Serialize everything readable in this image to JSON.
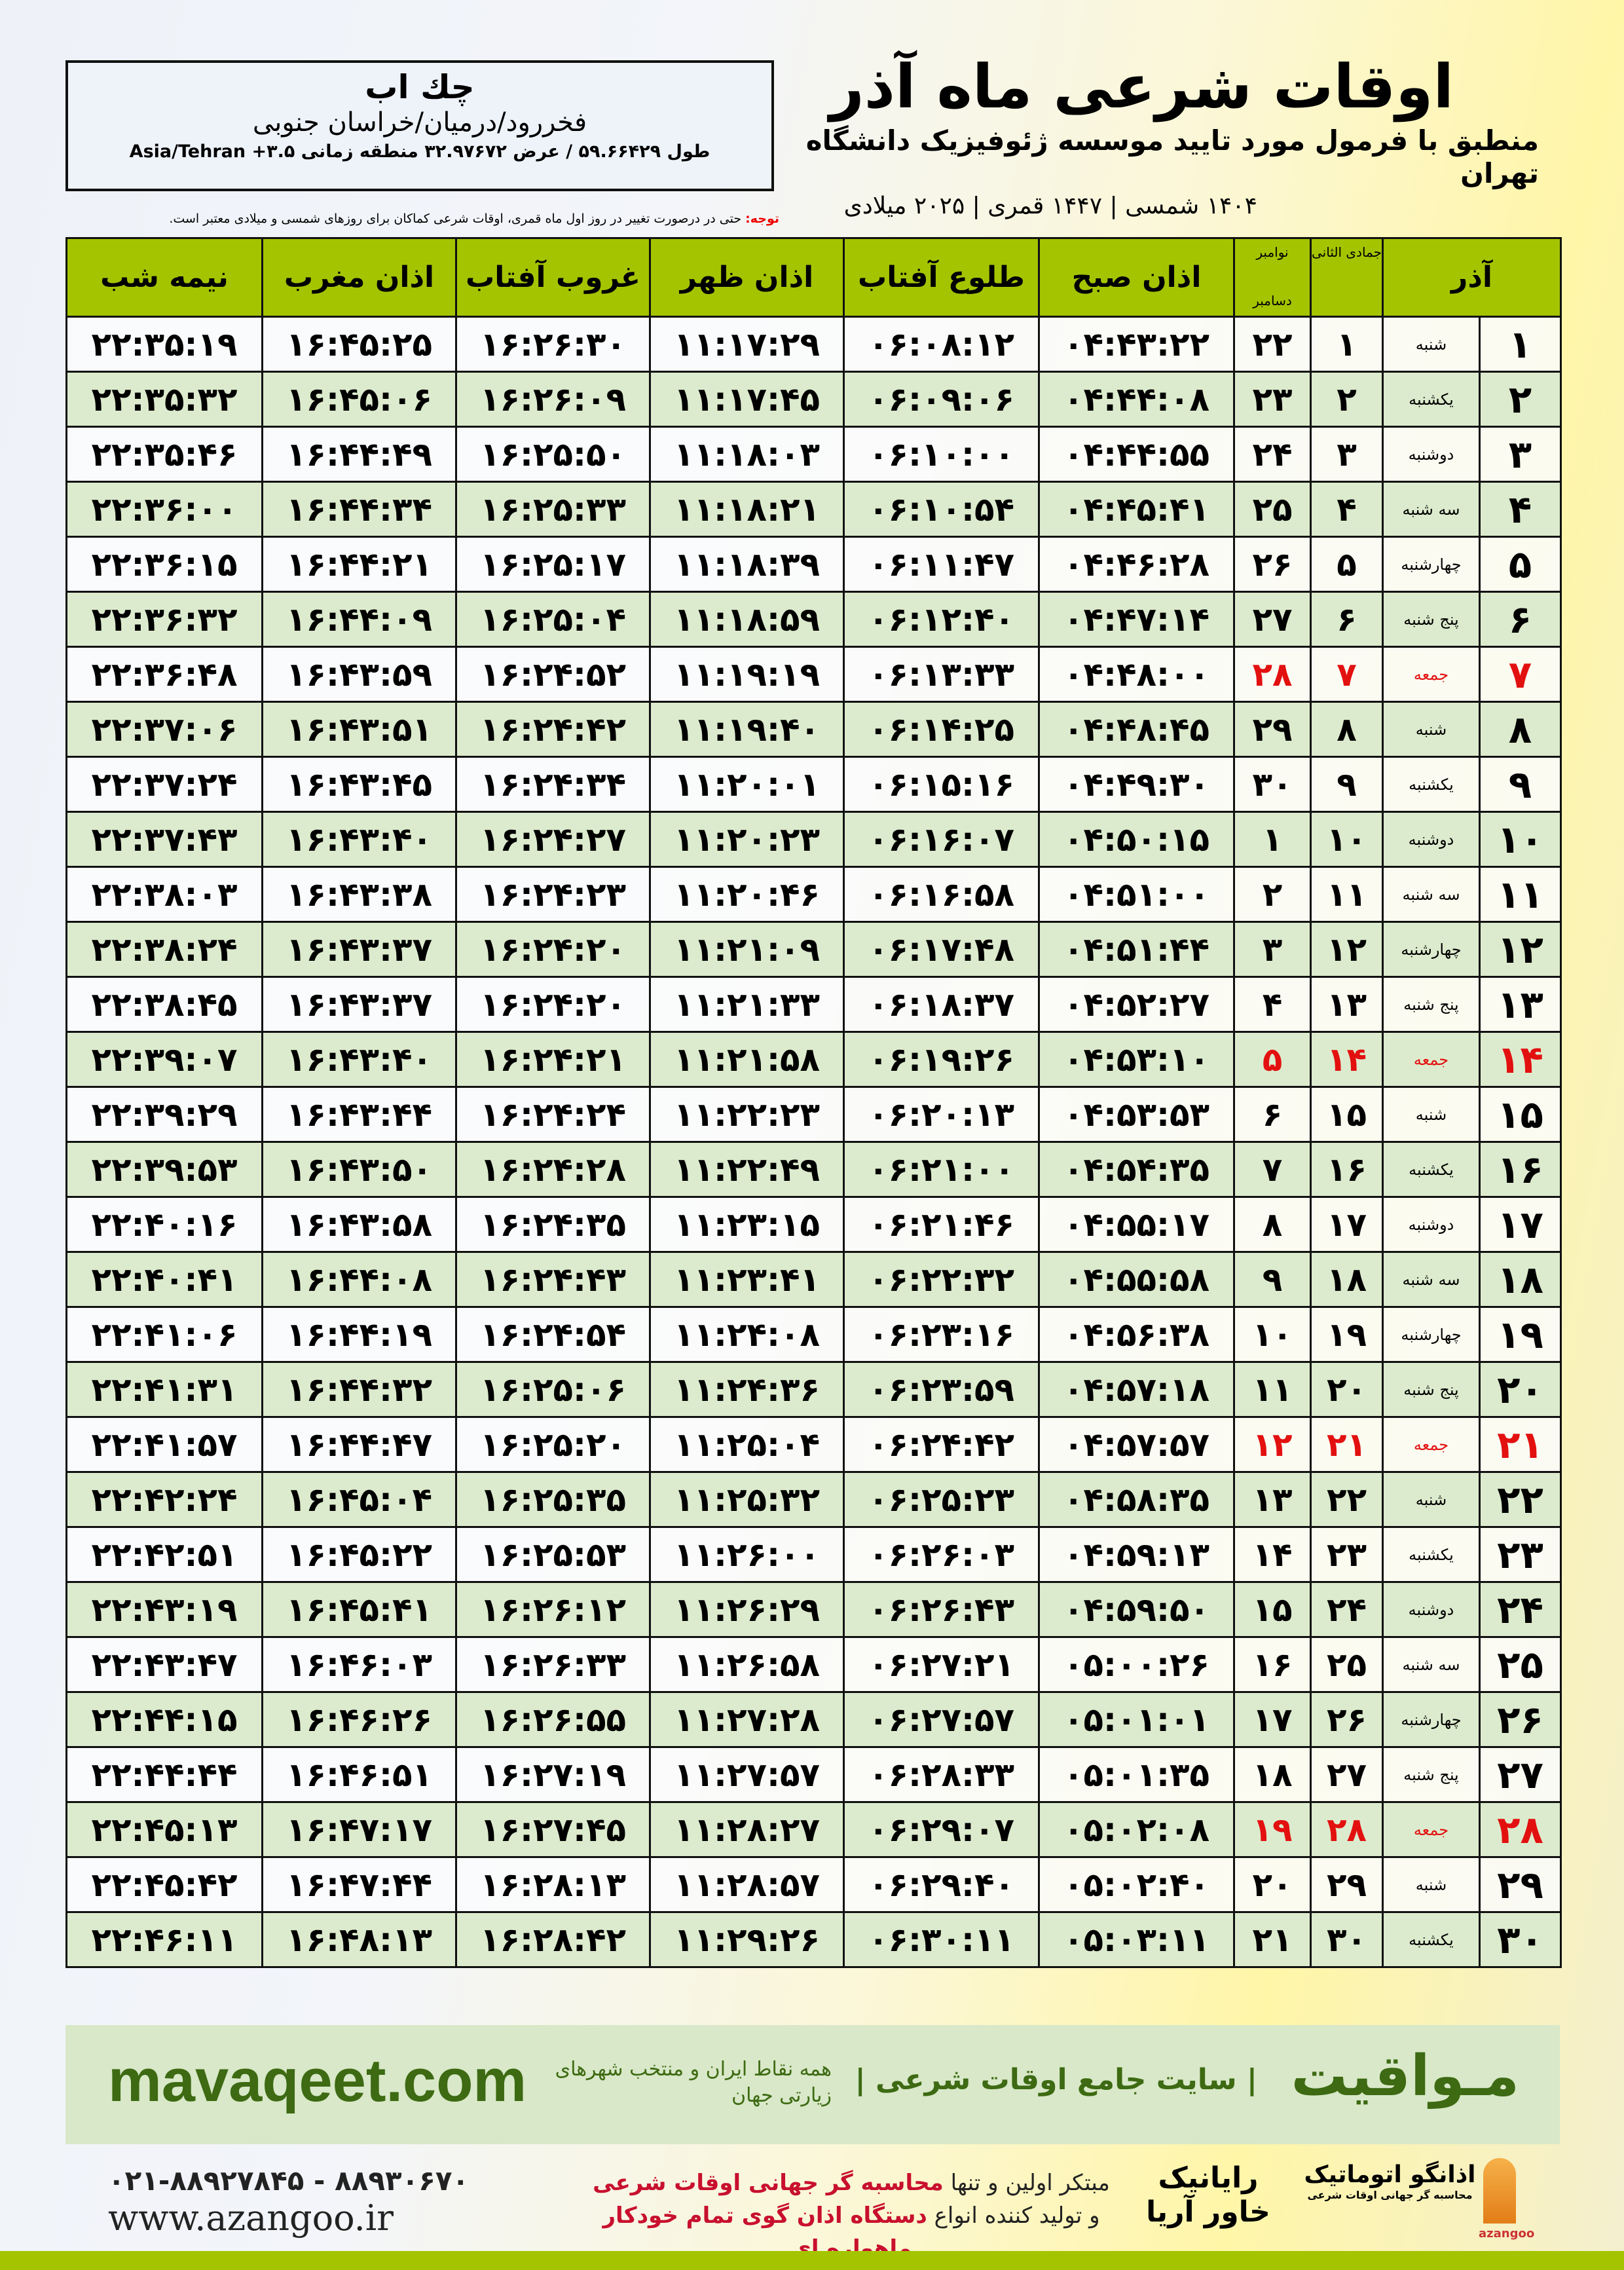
{
  "header": {
    "title": "اوقات شرعی ماه آذر",
    "subtitle": "منطبق با فرمول مورد تایید موسسه ژئوفیزیک دانشگاه تهران",
    "years": "۱۴۰۴ شمسی | ۱۴۴۷ قمری | ۲۰۲۵ میلادی"
  },
  "location": {
    "name": "چك اب",
    "path": "فخررود/درمیان/خراسان جنوبی",
    "coords": "طول ۵۹.۶۶۴۲۹ / عرض ۳۲.۹۷۶۷۲ منطقه زمانی Asia/Tehran +۳.۵"
  },
  "note": {
    "label": "توجه:",
    "text": " حتی در درصورت تغییر در روز اول ماه قمری، اوقات شرعی کماکان برای روزهای شمسی و میلادی معتبر است."
  },
  "table": {
    "headers": {
      "day": "آذر",
      "hijri": "جمادی الثانی",
      "greg_top": "نوامبر",
      "greg_bottom": "دسامبر",
      "sobh": "اذان صبح",
      "tolu": "طلوع آفتاب",
      "zuhr": "اذان ظهر",
      "ghurub": "غروب آفتاب",
      "maghrib": "اذان مغرب",
      "nimeh": "نیمه شب"
    },
    "holiday_color": "#e31010",
    "rows": [
      [
        "۱",
        "شنبه",
        "۱",
        "۲۲",
        "۰۴:۴۳:۲۲",
        "۰۶:۰۸:۱۲",
        "۱۱:۱۷:۲۹",
        "۱۶:۲۶:۳۰",
        "۱۶:۴۵:۲۵",
        "۲۲:۳۵:۱۹",
        false
      ],
      [
        "۲",
        "یکشنبه",
        "۲",
        "۲۳",
        "۰۴:۴۴:۰۸",
        "۰۶:۰۹:۰۶",
        "۱۱:۱۷:۴۵",
        "۱۶:۲۶:۰۹",
        "۱۶:۴۵:۰۶",
        "۲۲:۳۵:۳۲",
        false
      ],
      [
        "۳",
        "دوشنبه",
        "۳",
        "۲۴",
        "۰۴:۴۴:۵۵",
        "۰۶:۱۰:۰۰",
        "۱۱:۱۸:۰۳",
        "۱۶:۲۵:۵۰",
        "۱۶:۴۴:۴۹",
        "۲۲:۳۵:۴۶",
        false
      ],
      [
        "۴",
        "سه شنبه",
        "۴",
        "۲۵",
        "۰۴:۴۵:۴۱",
        "۰۶:۱۰:۵۴",
        "۱۱:۱۸:۲۱",
        "۱۶:۲۵:۳۳",
        "۱۶:۴۴:۳۴",
        "۲۲:۳۶:۰۰",
        false
      ],
      [
        "۵",
        "چهارشنبه",
        "۵",
        "۲۶",
        "۰۴:۴۶:۲۸",
        "۰۶:۱۱:۴۷",
        "۱۱:۱۸:۳۹",
        "۱۶:۲۵:۱۷",
        "۱۶:۴۴:۲۱",
        "۲۲:۳۶:۱۵",
        false
      ],
      [
        "۶",
        "پنج شنبه",
        "۶",
        "۲۷",
        "۰۴:۴۷:۱۴",
        "۰۶:۱۲:۴۰",
        "۱۱:۱۸:۵۹",
        "۱۶:۲۵:۰۴",
        "۱۶:۴۴:۰۹",
        "۲۲:۳۶:۳۲",
        false
      ],
      [
        "۷",
        "جمعه",
        "۷",
        "۲۸",
        "۰۴:۴۸:۰۰",
        "۰۶:۱۳:۳۳",
        "۱۱:۱۹:۱۹",
        "۱۶:۲۴:۵۲",
        "۱۶:۴۳:۵۹",
        "۲۲:۳۶:۴۸",
        true
      ],
      [
        "۸",
        "شنبه",
        "۸",
        "۲۹",
        "۰۴:۴۸:۴۵",
        "۰۶:۱۴:۲۵",
        "۱۱:۱۹:۴۰",
        "۱۶:۲۴:۴۲",
        "۱۶:۴۳:۵۱",
        "۲۲:۳۷:۰۶",
        false
      ],
      [
        "۹",
        "یکشنبه",
        "۹",
        "۳۰",
        "۰۴:۴۹:۳۰",
        "۰۶:۱۵:۱۶",
        "۱۱:۲۰:۰۱",
        "۱۶:۲۴:۳۴",
        "۱۶:۴۳:۴۵",
        "۲۲:۳۷:۲۴",
        false
      ],
      [
        "۱۰",
        "دوشنبه",
        "۱۰",
        "۱",
        "۰۴:۵۰:۱۵",
        "۰۶:۱۶:۰۷",
        "۱۱:۲۰:۲۳",
        "۱۶:۲۴:۲۷",
        "۱۶:۴۳:۴۰",
        "۲۲:۳۷:۴۳",
        false
      ],
      [
        "۱۱",
        "سه شنبه",
        "۱۱",
        "۲",
        "۰۴:۵۱:۰۰",
        "۰۶:۱۶:۵۸",
        "۱۱:۲۰:۴۶",
        "۱۶:۲۴:۲۳",
        "۱۶:۴۳:۳۸",
        "۲۲:۳۸:۰۳",
        false
      ],
      [
        "۱۲",
        "چهارشنبه",
        "۱۲",
        "۳",
        "۰۴:۵۱:۴۴",
        "۰۶:۱۷:۴۸",
        "۱۱:۲۱:۰۹",
        "۱۶:۲۴:۲۰",
        "۱۶:۴۳:۳۷",
        "۲۲:۳۸:۲۴",
        false
      ],
      [
        "۱۳",
        "پنج شنبه",
        "۱۳",
        "۴",
        "۰۴:۵۲:۲۷",
        "۰۶:۱۸:۳۷",
        "۱۱:۲۱:۳۳",
        "۱۶:۲۴:۲۰",
        "۱۶:۴۳:۳۷",
        "۲۲:۳۸:۴۵",
        false
      ],
      [
        "۱۴",
        "جمعه",
        "۱۴",
        "۵",
        "۰۴:۵۳:۱۰",
        "۰۶:۱۹:۲۶",
        "۱۱:۲۱:۵۸",
        "۱۶:۲۴:۲۱",
        "۱۶:۴۳:۴۰",
        "۲۲:۳۹:۰۷",
        true
      ],
      [
        "۱۵",
        "شنبه",
        "۱۵",
        "۶",
        "۰۴:۵۳:۵۳",
        "۰۶:۲۰:۱۳",
        "۱۱:۲۲:۲۳",
        "۱۶:۲۴:۲۴",
        "۱۶:۴۳:۴۴",
        "۲۲:۳۹:۲۹",
        false
      ],
      [
        "۱۶",
        "یکشنبه",
        "۱۶",
        "۷",
        "۰۴:۵۴:۳۵",
        "۰۶:۲۱:۰۰",
        "۱۱:۲۲:۴۹",
        "۱۶:۲۴:۲۸",
        "۱۶:۴۳:۵۰",
        "۲۲:۳۹:۵۳",
        false
      ],
      [
        "۱۷",
        "دوشنبه",
        "۱۷",
        "۸",
        "۰۴:۵۵:۱۷",
        "۰۶:۲۱:۴۶",
        "۱۱:۲۳:۱۵",
        "۱۶:۲۴:۳۵",
        "۱۶:۴۳:۵۸",
        "۲۲:۴۰:۱۶",
        false
      ],
      [
        "۱۸",
        "سه شنبه",
        "۱۸",
        "۹",
        "۰۴:۵۵:۵۸",
        "۰۶:۲۲:۳۲",
        "۱۱:۲۳:۴۱",
        "۱۶:۲۴:۴۳",
        "۱۶:۴۴:۰۸",
        "۲۲:۴۰:۴۱",
        false
      ],
      [
        "۱۹",
        "چهارشنبه",
        "۱۹",
        "۱۰",
        "۰۴:۵۶:۳۸",
        "۰۶:۲۳:۱۶",
        "۱۱:۲۴:۰۸",
        "۱۶:۲۴:۵۴",
        "۱۶:۴۴:۱۹",
        "۲۲:۴۱:۰۶",
        false
      ],
      [
        "۲۰",
        "پنج شنبه",
        "۲۰",
        "۱۱",
        "۰۴:۵۷:۱۸",
        "۰۶:۲۳:۵۹",
        "۱۱:۲۴:۳۶",
        "۱۶:۲۵:۰۶",
        "۱۶:۴۴:۳۲",
        "۲۲:۴۱:۳۱",
        false
      ],
      [
        "۲۱",
        "جمعه",
        "۲۱",
        "۱۲",
        "۰۴:۵۷:۵۷",
        "۰۶:۲۴:۴۲",
        "۱۱:۲۵:۰۴",
        "۱۶:۲۵:۲۰",
        "۱۶:۴۴:۴۷",
        "۲۲:۴۱:۵۷",
        true
      ],
      [
        "۲۲",
        "شنبه",
        "۲۲",
        "۱۳",
        "۰۴:۵۸:۳۵",
        "۰۶:۲۵:۲۳",
        "۱۱:۲۵:۳۲",
        "۱۶:۲۵:۳۵",
        "۱۶:۴۵:۰۴",
        "۲۲:۴۲:۲۴",
        false
      ],
      [
        "۲۳",
        "یکشنبه",
        "۲۳",
        "۱۴",
        "۰۴:۵۹:۱۳",
        "۰۶:۲۶:۰۳",
        "۱۱:۲۶:۰۰",
        "۱۶:۲۵:۵۳",
        "۱۶:۴۵:۲۲",
        "۲۲:۴۲:۵۱",
        false
      ],
      [
        "۲۴",
        "دوشنبه",
        "۲۴",
        "۱۵",
        "۰۴:۵۹:۵۰",
        "۰۶:۲۶:۴۳",
        "۱۱:۲۶:۲۹",
        "۱۶:۲۶:۱۲",
        "۱۶:۴۵:۴۱",
        "۲۲:۴۳:۱۹",
        false
      ],
      [
        "۲۵",
        "سه شنبه",
        "۲۵",
        "۱۶",
        "۰۵:۰۰:۲۶",
        "۰۶:۲۷:۲۱",
        "۱۱:۲۶:۵۸",
        "۱۶:۲۶:۳۳",
        "۱۶:۴۶:۰۳",
        "۲۲:۴۳:۴۷",
        false
      ],
      [
        "۲۶",
        "چهارشنبه",
        "۲۶",
        "۱۷",
        "۰۵:۰۱:۰۱",
        "۰۶:۲۷:۵۷",
        "۱۱:۲۷:۲۸",
        "۱۶:۲۶:۵۵",
        "۱۶:۴۶:۲۶",
        "۲۲:۴۴:۱۵",
        false
      ],
      [
        "۲۷",
        "پنج شنبه",
        "۲۷",
        "۱۸",
        "۰۵:۰۱:۳۵",
        "۰۶:۲۸:۳۳",
        "۱۱:۲۷:۵۷",
        "۱۶:۲۷:۱۹",
        "۱۶:۴۶:۵۱",
        "۲۲:۴۴:۴۴",
        false
      ],
      [
        "۲۸",
        "جمعه",
        "۲۸",
        "۱۹",
        "۰۵:۰۲:۰۸",
        "۰۶:۲۹:۰۷",
        "۱۱:۲۸:۲۷",
        "۱۶:۲۷:۴۵",
        "۱۶:۴۷:۱۷",
        "۲۲:۴۵:۱۳",
        true
      ],
      [
        "۲۹",
        "شنبه",
        "۲۹",
        "۲۰",
        "۰۵:۰۲:۴۰",
        "۰۶:۲۹:۴۰",
        "۱۱:۲۸:۵۷",
        "۱۶:۲۸:۱۳",
        "۱۶:۴۷:۴۴",
        "۲۲:۴۵:۴۲",
        false
      ],
      [
        "۳۰",
        "یکشنبه",
        "۳۰",
        "۲۱",
        "۰۵:۰۳:۱۱",
        "۰۶:۳۰:۱۱",
        "۱۱:۲۹:۲۶",
        "۱۶:۲۸:۴۲",
        "۱۶:۴۸:۱۳",
        "۲۲:۴۶:۱۱",
        false
      ]
    ]
  },
  "banner": {
    "logo": "مـواقیت",
    "tagline": "| سایت جامع اوقات شرعی |",
    "tagline2": "همه نقاط ایران و منتخب شهرهای زیارتی جهان",
    "url": "mavaqeet.com"
  },
  "footer": {
    "phone": "۰۲۱-۸۸۹۲۷۸۴۵ - ۸۸۹۳۰۶۷۰",
    "website": "www.azangoo.ir",
    "promo1a": "مبتکر اولین و تنها ",
    "promo1b": "محاسبه گر جهانی اوقات شرعی",
    "promo2a": "و تولید کننده انواع ",
    "promo2b": "دستگاه اذان گوی تمام خودکار ماهواره ای",
    "rayanik": "رایانیک خاور آریا",
    "azangoo": "اذانگو اتوماتیک",
    "azangoo_sub": "محاسبه گر جهانی اوقات شرعی",
    "azangoo_latin": "azangoo"
  }
}
